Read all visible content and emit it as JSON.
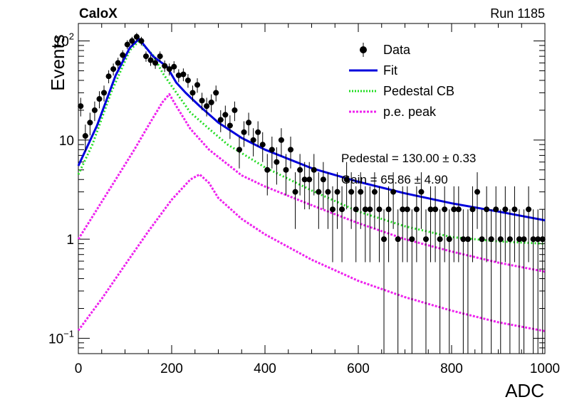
{
  "header": {
    "experiment": "CaloX",
    "run": "Run 1185"
  },
  "stats": {
    "pedestal": "Pedestal = 130.00 ± 0.33",
    "gain": "Gain = 65.86 ± 4.90"
  },
  "chart_data": {
    "type": "scatter",
    "xlabel": "ADC",
    "ylabel": "Events",
    "xlim": [
      0,
      1000
    ],
    "ylim": [
      0.07,
      150
    ],
    "yscale": "log",
    "grid": false,
    "legend_position": "top-right",
    "x_ticks": [
      "0",
      "200",
      "400",
      "600",
      "800",
      "1000"
    ],
    "y_ticks": [
      {
        "value": 100,
        "base": "10",
        "exp": "2"
      },
      {
        "value": 10,
        "base": "10",
        "exp": ""
      },
      {
        "value": 1,
        "base": "1",
        "exp": ""
      },
      {
        "value": 0.1,
        "base": "10",
        "exp": "−1"
      }
    ],
    "legend": [
      {
        "label": "Data",
        "style": "marker",
        "color": "#000000"
      },
      {
        "label": "Fit",
        "style": "solid",
        "color": "#0000dd"
      },
      {
        "label": "Pedestal CB",
        "style": "dotted",
        "color": "#22dd22"
      },
      {
        "label": "p.e. peak",
        "style": "dashed",
        "color": "#ee22ee"
      }
    ],
    "colors": {
      "data": "#000000",
      "fit": "#0000dd",
      "pedestal": "#22dd22",
      "pe": "#ee22ee"
    },
    "series": [
      {
        "name": "Data",
        "x": [
          5,
          15,
          25,
          35,
          45,
          55,
          65,
          75,
          85,
          95,
          105,
          115,
          125,
          135,
          145,
          155,
          165,
          175,
          185,
          195,
          205,
          215,
          225,
          235,
          245,
          255,
          265,
          275,
          285,
          295,
          305,
          315,
          325,
          335,
          345,
          355,
          365,
          375,
          385,
          395,
          405,
          415,
          425,
          435,
          445,
          455,
          465,
          475,
          485,
          495,
          505,
          515,
          525,
          535,
          545,
          555,
          565,
          575,
          585,
          595,
          605,
          615,
          625,
          635,
          645,
          655,
          665,
          675,
          685,
          695,
          705,
          715,
          725,
          735,
          745,
          755,
          765,
          775,
          785,
          795,
          805,
          815,
          825,
          835,
          845,
          855,
          865,
          875,
          885,
          895,
          905,
          915,
          925,
          935,
          945,
          955,
          965,
          975,
          985,
          995
        ],
        "y": [
          22,
          11,
          15,
          20,
          26,
          30,
          44,
          52,
          60,
          72,
          92,
          100,
          110,
          100,
          70,
          64,
          60,
          70,
          56,
          52,
          55,
          45,
          46,
          40,
          30,
          36,
          25,
          22,
          24,
          30,
          16,
          18,
          14,
          20,
          8,
          12,
          15,
          10,
          12,
          9,
          5,
          8,
          6,
          10,
          5,
          8,
          3,
          5,
          4,
          4,
          5,
          3,
          4,
          3,
          2,
          3,
          2,
          4,
          3,
          2,
          3,
          2,
          2,
          3,
          2,
          1,
          2,
          3,
          1,
          2,
          2,
          1,
          2,
          3,
          1,
          2,
          2,
          1,
          2,
          1,
          2,
          2,
          1,
          1,
          2,
          3,
          1,
          2,
          1,
          2,
          1,
          2,
          1,
          2,
          1,
          1,
          2,
          1,
          1,
          1
        ]
      },
      {
        "name": "Fit",
        "x": [
          0,
          40,
          80,
          110,
          130,
          160,
          190,
          210,
          230,
          260,
          300,
          350,
          400,
          500,
          600,
          700,
          800,
          900,
          1000
        ],
        "y": [
          5.5,
          14,
          45,
          85,
          105,
          70,
          55,
          38,
          30,
          22,
          15,
          10.5,
          8,
          5.2,
          3.8,
          2.9,
          2.3,
          1.9,
          1.55
        ]
      },
      {
        "name": "Pedestal CB",
        "x": [
          0,
          30,
          70,
          110,
          130,
          160,
          180,
          200,
          240,
          280,
          320,
          400,
          500,
          600,
          700,
          800,
          900,
          1000
        ],
        "y": [
          4.5,
          9,
          30,
          80,
          100,
          72,
          48,
          35,
          19,
          13,
          9,
          5.3,
          3.1,
          1.9,
          1.35,
          1.05,
          0.95,
          0.9
        ]
      },
      {
        "name": "p.e. peak",
        "x": [
          0,
          40,
          80,
          120,
          150,
          180,
          195,
          210,
          240,
          280,
          350,
          400,
          500,
          600,
          700,
          800,
          900,
          1000
        ],
        "y": [
          1,
          2,
          4,
          8,
          14,
          24,
          29,
          22,
          13,
          8,
          4.4,
          3.4,
          2.2,
          1.45,
          1.0,
          0.75,
          0.58,
          0.47
        ]
      },
      {
        "name": "",
        "x": [
          0,
          50,
          100,
          150,
          200,
          240,
          260,
          280,
          300,
          350,
          400,
          500,
          600,
          700,
          800,
          900,
          1000
        ],
        "y": [
          0.12,
          0.25,
          0.55,
          1.2,
          2.5,
          4.0,
          4.5,
          3.7,
          2.6,
          1.6,
          1.12,
          0.62,
          0.38,
          0.26,
          0.19,
          0.145,
          0.118
        ]
      }
    ]
  }
}
